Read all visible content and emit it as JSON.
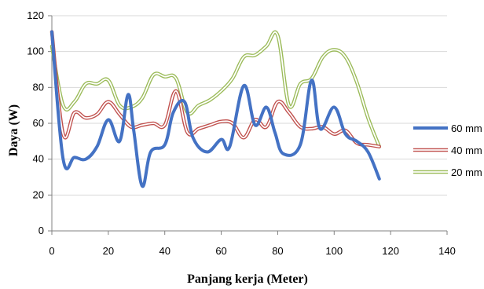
{
  "chart_data": {
    "type": "line",
    "title": "",
    "xlabel": "Panjang kerja (Meter)",
    "ylabel": "Daya (W)",
    "xlim": [
      0,
      140
    ],
    "ylim": [
      0,
      120
    ],
    "xticks": [
      0,
      20,
      40,
      60,
      80,
      100,
      120,
      140
    ],
    "yticks": [
      0,
      20,
      40,
      60,
      80,
      100,
      120
    ],
    "grid": "horizontal",
    "legend": "right",
    "series": [
      {
        "name": "60 mm",
        "color": "#4472c4",
        "style": "solid",
        "points": [
          [
            0,
            111
          ],
          [
            4,
            40
          ],
          [
            8,
            41
          ],
          [
            12,
            40
          ],
          [
            16,
            47
          ],
          [
            20,
            62
          ],
          [
            24,
            50
          ],
          [
            27,
            76
          ],
          [
            29,
            56
          ],
          [
            32,
            25
          ],
          [
            35,
            44
          ],
          [
            40,
            48
          ],
          [
            43,
            66
          ],
          [
            47,
            72
          ],
          [
            50,
            52
          ],
          [
            55,
            44
          ],
          [
            60,
            51
          ],
          [
            63,
            47
          ],
          [
            68,
            81
          ],
          [
            72,
            59
          ],
          [
            76,
            69
          ],
          [
            79,
            55
          ],
          [
            82,
            43
          ],
          [
            88,
            48
          ],
          [
            92,
            84
          ],
          [
            95,
            57
          ],
          [
            100,
            69
          ],
          [
            104,
            54
          ],
          [
            108,
            50
          ],
          [
            112,
            44
          ],
          [
            116,
            29
          ]
        ]
      },
      {
        "name": "40 mm",
        "color": "#c0504d",
        "style": "double",
        "points": [
          [
            0,
            111
          ],
          [
            4,
            54
          ],
          [
            8,
            66
          ],
          [
            12,
            63
          ],
          [
            16,
            65
          ],
          [
            20,
            72
          ],
          [
            24,
            65
          ],
          [
            28,
            58
          ],
          [
            32,
            59
          ],
          [
            36,
            60
          ],
          [
            40,
            59
          ],
          [
            44,
            78
          ],
          [
            48,
            55
          ],
          [
            52,
            57
          ],
          [
            56,
            59
          ],
          [
            60,
            61
          ],
          [
            64,
            60
          ],
          [
            68,
            52
          ],
          [
            72,
            62
          ],
          [
            76,
            58
          ],
          [
            80,
            72
          ],
          [
            84,
            66
          ],
          [
            88,
            58
          ],
          [
            92,
            57
          ],
          [
            96,
            58
          ],
          [
            100,
            54
          ],
          [
            104,
            56
          ],
          [
            108,
            49
          ],
          [
            112,
            48
          ],
          [
            116,
            47
          ]
        ]
      },
      {
        "name": "20 mm",
        "color": "#9bbb59",
        "style": "double",
        "points": [
          [
            0,
            103
          ],
          [
            4,
            70
          ],
          [
            8,
            72
          ],
          [
            12,
            82
          ],
          [
            16,
            82
          ],
          [
            20,
            84
          ],
          [
            24,
            70
          ],
          [
            28,
            69
          ],
          [
            32,
            74
          ],
          [
            36,
            87
          ],
          [
            40,
            86
          ],
          [
            44,
            85
          ],
          [
            48,
            66
          ],
          [
            52,
            70
          ],
          [
            56,
            73
          ],
          [
            60,
            78
          ],
          [
            64,
            85
          ],
          [
            68,
            97
          ],
          [
            72,
            98
          ],
          [
            76,
            103
          ],
          [
            80,
            109
          ],
          [
            84,
            70
          ],
          [
            88,
            82
          ],
          [
            92,
            85
          ],
          [
            96,
            97
          ],
          [
            100,
            101
          ],
          [
            104,
            97
          ],
          [
            108,
            83
          ],
          [
            112,
            63
          ],
          [
            116,
            47
          ]
        ]
      }
    ]
  }
}
